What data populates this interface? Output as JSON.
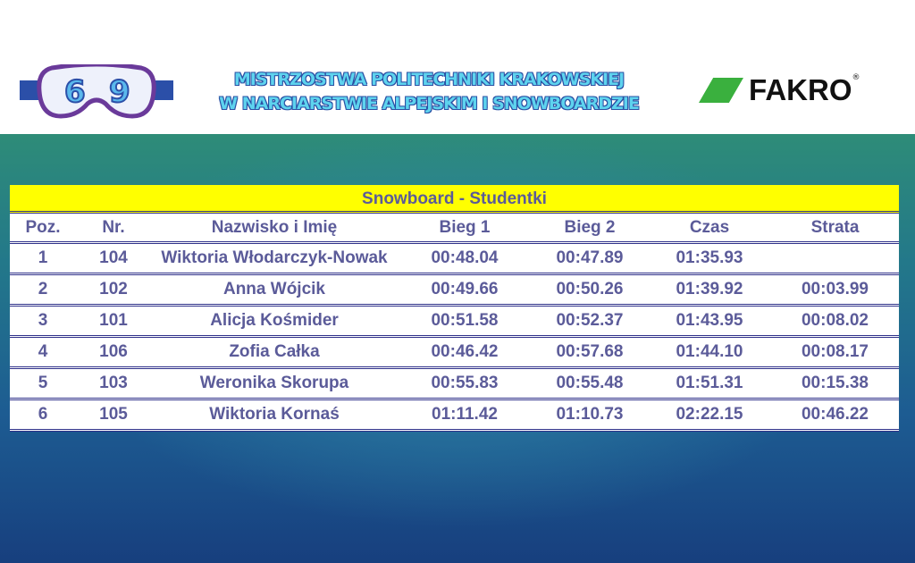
{
  "header": {
    "logo_text": "69",
    "title_line1": "MISTRZOSTWA POLITECHNIKI KRAKOWSKIEJ",
    "title_line2": "W NARCIARSTWIE ALPEJSKIM I SNOWBOARDZIE",
    "sponsor": "FAKRO",
    "sponsor_reg": "®"
  },
  "table": {
    "caption": "Snowboard - Studentki",
    "columns": [
      "Poz.",
      "Nr.",
      "Nazwisko i Imię",
      "Bieg 1",
      "Bieg 2",
      "Czas",
      "Strata"
    ],
    "rows": [
      [
        "1",
        "104",
        "Wiktoria Włodarczyk-Nowak",
        "00:48.04",
        "00:47.89",
        "01:35.93",
        ""
      ],
      [
        "2",
        "102",
        "Anna Wójcik",
        "00:49.66",
        "00:50.26",
        "01:39.92",
        "00:03.99"
      ],
      [
        "3",
        "101",
        "Alicja Kośmider",
        "00:51.58",
        "00:52.37",
        "01:43.95",
        "00:08.02"
      ],
      [
        "4",
        "106",
        "Zofia Całka",
        "00:46.42",
        "00:57.68",
        "01:44.10",
        "00:08.17"
      ],
      [
        "5",
        "103",
        "Weronika Skorupa",
        "00:55.83",
        "00:55.48",
        "01:51.31",
        "00:15.38"
      ],
      [
        "6",
        "105",
        "Wiktoria Kornaś",
        "01:11.42",
        "01:10.73",
        "02:22.15",
        "00:46.22"
      ]
    ]
  },
  "colors": {
    "caption_bg": "#ffff00",
    "text": "#5b5b99",
    "rule": "#2f318a",
    "fakro_green": "#3ab03e"
  }
}
